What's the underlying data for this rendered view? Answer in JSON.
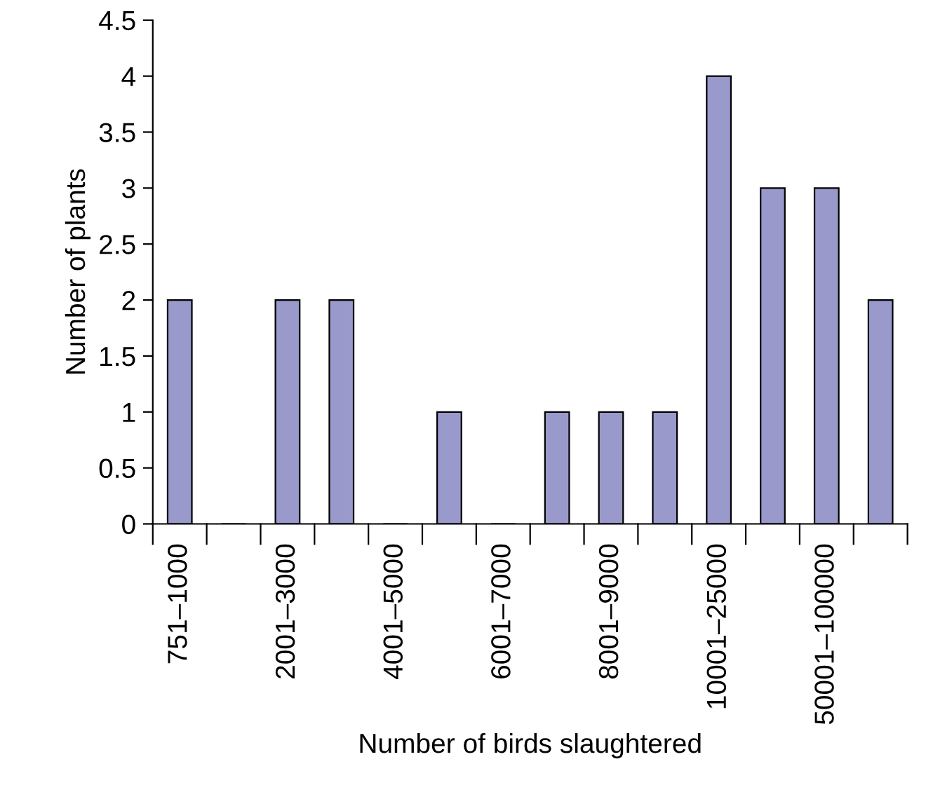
{
  "chart_data": {
    "type": "bar",
    "xlabel": "Number of birds slaughtered",
    "ylabel": "Number of plants",
    "categories": [
      "751–1000",
      null,
      "2001–3000",
      null,
      "4001–5000",
      null,
      "6001–7000",
      null,
      "8001–9000",
      null,
      "10001–25000",
      null,
      "50001–100000",
      null
    ],
    "values": [
      2,
      0,
      2,
      2,
      0,
      1,
      0,
      1,
      1,
      1,
      4,
      3,
      3,
      2
    ],
    "color": "#9999cc",
    "ylim": [
      0,
      4.5
    ],
    "yticks": [
      0,
      {
        "value": 0.5,
        "label": "0.5"
      },
      1,
      {
        "value": 1.5,
        "label": "1.5"
      },
      2,
      {
        "value": 2.5,
        "label": "2.5"
      },
      3,
      {
        "value": 3.5,
        "label": "3.5"
      },
      4,
      {
        "value": 4.5,
        "label": "4.5"
      }
    ],
    "grid": false,
    "legend": false
  }
}
